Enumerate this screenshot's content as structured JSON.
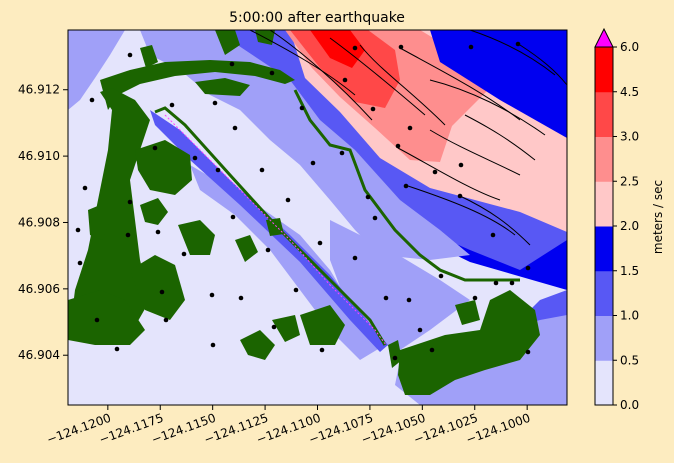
{
  "chart_data": {
    "type": "heatmap",
    "title": "5:00:00 after earthquake",
    "xlabel": "",
    "ylabel": "",
    "xlim": [
      -124.1219,
      -124.0981
    ],
    "ylim": [
      46.9025,
      46.9138
    ],
    "x_ticks": [
      {
        "value": -124.12,
        "label": "−124.1200"
      },
      {
        "value": -124.1175,
        "label": "−124.1175"
      },
      {
        "value": -124.115,
        "label": "−124.1150"
      },
      {
        "value": -124.1125,
        "label": "−124.1125"
      },
      {
        "value": -124.11,
        "label": "−124.1100"
      },
      {
        "value": -124.1075,
        "label": "−124.1075"
      },
      {
        "value": -124.105,
        "label": "−124.1050"
      },
      {
        "value": -124.1025,
        "label": "−124.1025"
      },
      {
        "value": -124.1,
        "label": "−124.1000"
      }
    ],
    "y_ticks": [
      {
        "value": 46.904,
        "label": "46.904"
      },
      {
        "value": 46.906,
        "label": "46.906"
      },
      {
        "value": 46.908,
        "label": "46.908"
      },
      {
        "value": 46.91,
        "label": "46.910"
      },
      {
        "value": 46.912,
        "label": "46.912"
      }
    ],
    "colorbar": {
      "label": "meters / sec",
      "levels": [
        0.0,
        0.5,
        1.0,
        1.5,
        2.0,
        2.5,
        3.0,
        4.5,
        6.0
      ],
      "tick_labels": [
        "0.0",
        "0.5",
        "1.0",
        "1.5",
        "2.0",
        "2.5",
        "3.0",
        "4.5",
        "6.0"
      ],
      "colors": [
        "#e4e4fc",
        "#a0a0f8",
        "#5858f4",
        "#0000f0",
        "#ffc8c8",
        "#fe8e8e",
        "#ff4848",
        "#ff0000"
      ],
      "extend_color": "#ff00ff"
    },
    "land_color": "#1b6400",
    "page_background": "#fdecc0"
  }
}
